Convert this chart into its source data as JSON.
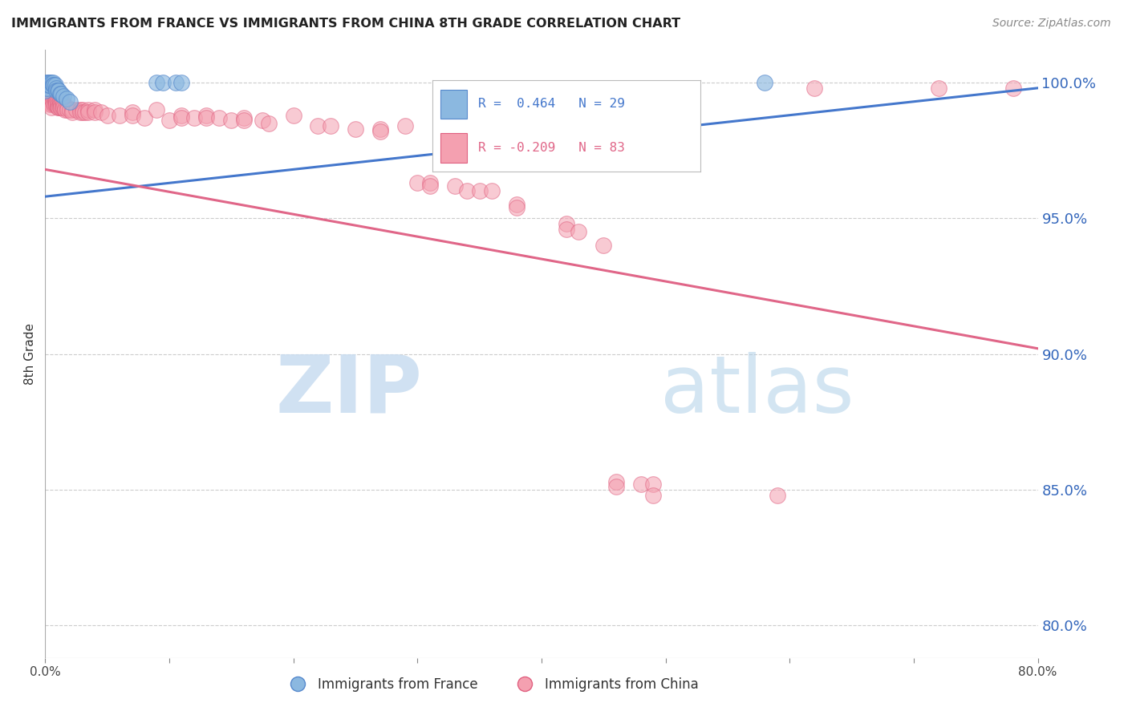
{
  "title": "IMMIGRANTS FROM FRANCE VS IMMIGRANTS FROM CHINA 8TH GRADE CORRELATION CHART",
  "source_text": "Source: ZipAtlas.com",
  "ylabel": "8th Grade",
  "x_min": 0.0,
  "x_max": 0.8,
  "y_min": 0.788,
  "y_max": 1.012,
  "x_ticks": [
    0.0,
    0.1,
    0.2,
    0.3,
    0.4,
    0.5,
    0.6,
    0.7,
    0.8
  ],
  "x_tick_labels": [
    "0.0%",
    "",
    "",
    "",
    "",
    "",
    "",
    "",
    "80.0%"
  ],
  "y_ticks": [
    0.8,
    0.85,
    0.9,
    0.95,
    1.0
  ],
  "y_tick_labels": [
    "80.0%",
    "85.0%",
    "90.0%",
    "95.0%",
    "100.0%"
  ],
  "legend_blue_label": "Immigrants from France",
  "legend_pink_label": "Immigrants from China",
  "blue_color": "#8BB8E0",
  "pink_color": "#F4A0B0",
  "blue_edge_color": "#5588CC",
  "pink_edge_color": "#E06080",
  "trendline_blue_color": "#4477CC",
  "trendline_pink_color": "#E06688",
  "background_color": "#FFFFFF",
  "grid_color": "#CCCCCC",
  "blue_scatter": [
    [
      0.0,
      1.0
    ],
    [
      0.0,
      0.998
    ],
    [
      0.0,
      0.997
    ],
    [
      0.002,
      1.0
    ],
    [
      0.002,
      0.999
    ],
    [
      0.002,
      0.998
    ],
    [
      0.003,
      1.0
    ],
    [
      0.003,
      0.999
    ],
    [
      0.004,
      1.0
    ],
    [
      0.004,
      0.999
    ],
    [
      0.005,
      1.0
    ],
    [
      0.006,
      1.0
    ],
    [
      0.006,
      0.999
    ],
    [
      0.007,
      0.999
    ],
    [
      0.008,
      0.999
    ],
    [
      0.009,
      0.998
    ],
    [
      0.009,
      0.997
    ],
    [
      0.01,
      0.997
    ],
    [
      0.011,
      0.997
    ],
    [
      0.012,
      0.996
    ],
    [
      0.013,
      0.996
    ],
    [
      0.015,
      0.995
    ],
    [
      0.017,
      0.994
    ],
    [
      0.02,
      0.993
    ],
    [
      0.09,
      1.0
    ],
    [
      0.095,
      1.0
    ],
    [
      0.105,
      1.0
    ],
    [
      0.11,
      1.0
    ],
    [
      0.58,
      1.0
    ]
  ],
  "pink_scatter": [
    [
      0.0,
      0.997
    ],
    [
      0.0,
      0.995
    ],
    [
      0.0,
      0.993
    ],
    [
      0.002,
      0.997
    ],
    [
      0.002,
      0.994
    ],
    [
      0.002,
      0.993
    ],
    [
      0.003,
      0.997
    ],
    [
      0.003,
      0.994
    ],
    [
      0.003,
      0.993
    ],
    [
      0.004,
      0.996
    ],
    [
      0.004,
      0.993
    ],
    [
      0.004,
      0.992
    ],
    [
      0.005,
      0.994
    ],
    [
      0.005,
      0.993
    ],
    [
      0.005,
      0.992
    ],
    [
      0.005,
      0.991
    ],
    [
      0.006,
      0.996
    ],
    [
      0.006,
      0.993
    ],
    [
      0.007,
      0.994
    ],
    [
      0.007,
      0.992
    ],
    [
      0.008,
      0.994
    ],
    [
      0.008,
      0.993
    ],
    [
      0.008,
      0.992
    ],
    [
      0.009,
      0.993
    ],
    [
      0.009,
      0.992
    ],
    [
      0.01,
      0.993
    ],
    [
      0.01,
      0.992
    ],
    [
      0.01,
      0.991
    ],
    [
      0.011,
      0.992
    ],
    [
      0.011,
      0.991
    ],
    [
      0.012,
      0.993
    ],
    [
      0.012,
      0.992
    ],
    [
      0.012,
      0.991
    ],
    [
      0.013,
      0.992
    ],
    [
      0.013,
      0.991
    ],
    [
      0.014,
      0.993
    ],
    [
      0.014,
      0.991
    ],
    [
      0.015,
      0.992
    ],
    [
      0.015,
      0.991
    ],
    [
      0.016,
      0.991
    ],
    [
      0.016,
      0.99
    ],
    [
      0.018,
      0.991
    ],
    [
      0.018,
      0.99
    ],
    [
      0.02,
      0.99
    ],
    [
      0.022,
      0.99
    ],
    [
      0.022,
      0.989
    ],
    [
      0.025,
      0.99
    ],
    [
      0.028,
      0.99
    ],
    [
      0.028,
      0.989
    ],
    [
      0.03,
      0.99
    ],
    [
      0.03,
      0.989
    ],
    [
      0.032,
      0.989
    ],
    [
      0.035,
      0.99
    ],
    [
      0.035,
      0.989
    ],
    [
      0.04,
      0.99
    ],
    [
      0.04,
      0.989
    ],
    [
      0.045,
      0.989
    ],
    [
      0.05,
      0.988
    ],
    [
      0.06,
      0.988
    ],
    [
      0.07,
      0.989
    ],
    [
      0.07,
      0.988
    ],
    [
      0.08,
      0.987
    ],
    [
      0.09,
      0.99
    ],
    [
      0.1,
      0.986
    ],
    [
      0.11,
      0.988
    ],
    [
      0.11,
      0.987
    ],
    [
      0.12,
      0.987
    ],
    [
      0.13,
      0.988
    ],
    [
      0.13,
      0.987
    ],
    [
      0.14,
      0.987
    ],
    [
      0.15,
      0.986
    ],
    [
      0.16,
      0.987
    ],
    [
      0.16,
      0.986
    ],
    [
      0.175,
      0.986
    ],
    [
      0.18,
      0.985
    ],
    [
      0.2,
      0.988
    ],
    [
      0.22,
      0.984
    ],
    [
      0.23,
      0.984
    ],
    [
      0.25,
      0.983
    ],
    [
      0.27,
      0.983
    ],
    [
      0.27,
      0.982
    ],
    [
      0.29,
      0.984
    ],
    [
      0.3,
      0.963
    ],
    [
      0.31,
      0.963
    ],
    [
      0.31,
      0.962
    ],
    [
      0.33,
      0.962
    ],
    [
      0.34,
      0.96
    ],
    [
      0.35,
      0.96
    ],
    [
      0.36,
      0.96
    ],
    [
      0.38,
      0.955
    ],
    [
      0.38,
      0.954
    ],
    [
      0.42,
      0.948
    ],
    [
      0.42,
      0.946
    ],
    [
      0.43,
      0.945
    ],
    [
      0.45,
      0.94
    ],
    [
      0.46,
      0.853
    ],
    [
      0.46,
      0.851
    ],
    [
      0.48,
      0.852
    ],
    [
      0.49,
      0.852
    ],
    [
      0.49,
      0.848
    ],
    [
      0.59,
      0.848
    ],
    [
      0.62,
      0.998
    ],
    [
      0.72,
      0.998
    ],
    [
      0.78,
      0.998
    ]
  ],
  "blue_trendline_x": [
    0.0,
    0.8
  ],
  "blue_trendline_y": [
    0.958,
    0.998
  ],
  "pink_trendline_x": [
    0.0,
    0.8
  ],
  "pink_trendline_y": [
    0.968,
    0.902
  ]
}
